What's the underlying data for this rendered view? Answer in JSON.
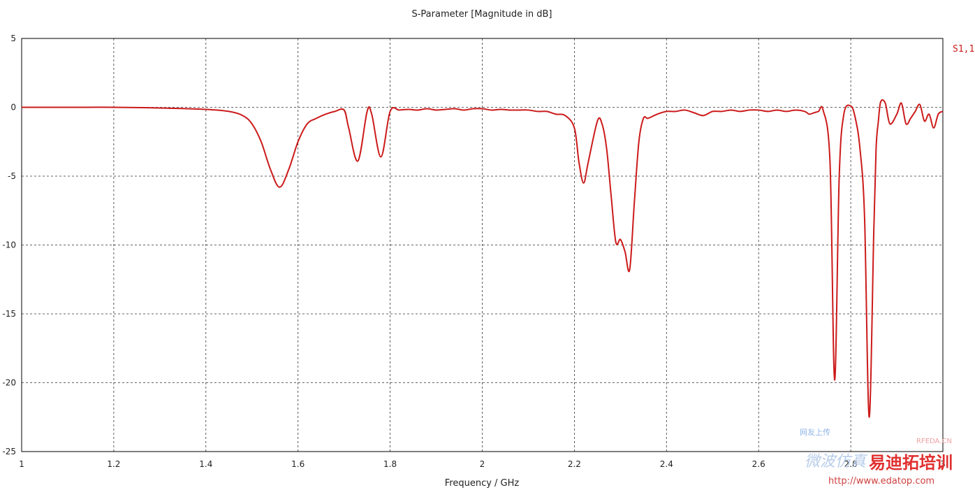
{
  "chart_data": {
    "type": "line",
    "title": "S-Parameter [Magnitude in dB]",
    "xlabel": "Frequency / GHz",
    "ylabel": "",
    "xlim": [
      1,
      3
    ],
    "ylim": [
      -25,
      5
    ],
    "xticks": [
      1,
      1.2,
      1.4,
      1.6,
      1.8,
      2,
      2.2,
      2.4,
      2.6,
      2.8,
      3
    ],
    "xtick_labels": [
      "1",
      "1.2",
      "1.4",
      "1.6",
      "1.8",
      "2",
      "2.2",
      "2.4",
      "2.6",
      "2.8",
      "3"
    ],
    "yticks": [
      5,
      0,
      -5,
      -10,
      -15,
      -20,
      -25
    ],
    "ytick_labels": [
      "5",
      "0",
      "-5",
      "-10",
      "-15",
      "-20",
      "-25"
    ],
    "grid": true,
    "legend_position": "right",
    "series": [
      {
        "name": "S1,1",
        "color": "#cc1a1a",
        "x": [
          1.0,
          1.05,
          1.1,
          1.2,
          1.3,
          1.4,
          1.45,
          1.48,
          1.5,
          1.52,
          1.54,
          1.56,
          1.58,
          1.6,
          1.62,
          1.64,
          1.66,
          1.68,
          1.7,
          1.71,
          1.73,
          1.75,
          1.76,
          1.78,
          1.8,
          1.82,
          1.84,
          1.86,
          1.88,
          1.9,
          1.92,
          1.94,
          1.96,
          1.98,
          2.0,
          2.02,
          2.04,
          2.06,
          2.08,
          2.1,
          2.12,
          2.14,
          2.16,
          2.18,
          2.2,
          2.21,
          2.22,
          2.23,
          2.25,
          2.26,
          2.27,
          2.28,
          2.29,
          2.3,
          2.31,
          2.32,
          2.33,
          2.34,
          2.35,
          2.36,
          2.38,
          2.4,
          2.42,
          2.44,
          2.46,
          2.48,
          2.5,
          2.52,
          2.54,
          2.56,
          2.58,
          2.6,
          2.62,
          2.64,
          2.66,
          2.68,
          2.7,
          2.71,
          2.72,
          2.73,
          2.74,
          2.755,
          2.765,
          2.775,
          2.785,
          2.8,
          2.81,
          2.82,
          2.83,
          2.84,
          2.85,
          2.855,
          2.86,
          2.865,
          2.875,
          2.885,
          2.9,
          2.91,
          2.92,
          2.93,
          2.94,
          2.95,
          2.96,
          2.97,
          2.98,
          2.99,
          3.0
        ],
        "y": [
          0.0,
          0.0,
          0.0,
          0.0,
          -0.05,
          -0.15,
          -0.3,
          -0.6,
          -1.2,
          -2.5,
          -4.5,
          -5.8,
          -4.5,
          -2.5,
          -1.2,
          -0.8,
          -0.5,
          -0.3,
          -0.2,
          -1.5,
          -3.9,
          -0.3,
          -0.5,
          -3.6,
          -0.3,
          -0.2,
          -0.15,
          -0.2,
          -0.1,
          -0.2,
          -0.15,
          -0.1,
          -0.2,
          -0.1,
          -0.1,
          -0.2,
          -0.15,
          -0.2,
          -0.2,
          -0.2,
          -0.3,
          -0.3,
          -0.5,
          -0.6,
          -1.5,
          -4.0,
          -5.5,
          -4.0,
          -1.0,
          -1.2,
          -3.0,
          -6.5,
          -9.8,
          -9.6,
          -10.5,
          -11.8,
          -7.0,
          -2.5,
          -0.8,
          -0.8,
          -0.5,
          -0.3,
          -0.3,
          -0.2,
          -0.4,
          -0.6,
          -0.3,
          -0.3,
          -0.2,
          -0.3,
          -0.2,
          -0.2,
          -0.3,
          -0.2,
          -0.3,
          -0.2,
          -0.3,
          -0.5,
          -0.4,
          -0.3,
          -0.2,
          -4.0,
          -19.8,
          -5.0,
          -0.5,
          0.1,
          -0.8,
          -3.0,
          -8.0,
          -22.5,
          -9.0,
          -3.0,
          -1.0,
          0.4,
          0.3,
          -1.2,
          -0.5,
          0.3,
          -1.2,
          -0.8,
          -0.3,
          0.2,
          -1.0,
          -0.5,
          -1.5,
          -0.5,
          -0.3
        ]
      }
    ]
  },
  "watermark": {
    "line1": "网友上传",
    "line2": "RFEDA.CN",
    "line3": "微波仿真",
    "line4": "易迪拓培训",
    "line5": "http://www.edatop.com"
  }
}
